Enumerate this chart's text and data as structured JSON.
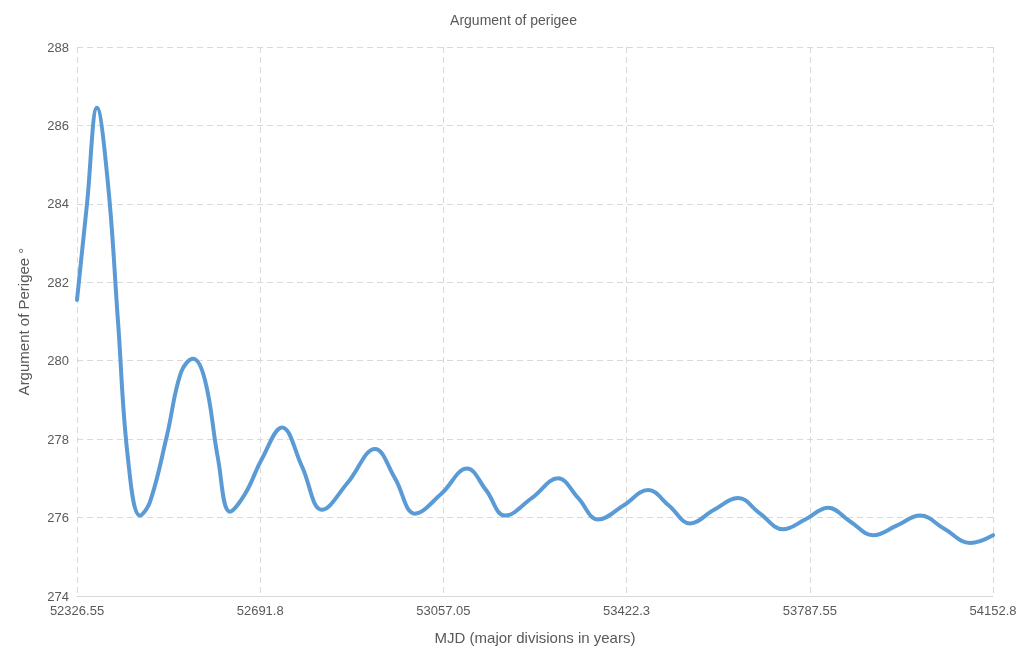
{
  "chart_data": {
    "type": "line",
    "title": "Argument of perigee",
    "xlabel": "MJD (major divisions in years)",
    "ylabel": "Argument of Perigee °",
    "x": [
      52326.55,
      52346.5,
      52366.4,
      52388.4,
      52408.3,
      52428.2,
      52452.2,
      52472.1,
      52506.0,
      52533.9,
      52557.8,
      52581.8,
      52607.7,
      52631.6,
      52661.5,
      52695.4,
      52735.3,
      52775.2,
      52815.1,
      52866.9,
      52920.7,
      52960.6,
      53000.5,
      53052.4,
      53104.2,
      53142.1,
      53180.0,
      53233.8,
      53285.7,
      53325.6,
      53365.4,
      53415.3,
      53465.2,
      53507.1,
      53548.9,
      53596.8,
      53644.6,
      53688.5,
      53734.4,
      53778.2,
      53824.1,
      53868.0,
      53913.8,
      53961.7,
      54007.4,
      54057.2,
      54107.1,
      54152.8
    ],
    "series": [
      {
        "color": "#5b9bd5",
        "values": [
          281.55,
          284.0,
          286.45,
          284.5,
          281.0,
          277.5,
          276.05,
          276.4,
          278.1,
          279.7,
          280.05,
          279.5,
          277.5,
          276.15,
          276.6,
          277.5,
          278.3,
          277.3,
          276.2,
          276.9,
          277.75,
          277.0,
          276.1,
          276.6,
          277.25,
          276.7,
          276.05,
          276.5,
          277.0,
          276.5,
          275.95,
          276.3,
          276.7,
          276.3,
          275.85,
          276.2,
          276.5,
          276.1,
          275.7,
          275.95,
          276.25,
          275.9,
          275.55,
          275.8,
          276.05,
          275.7,
          275.35,
          275.55
        ]
      }
    ],
    "xlim": [
      52326.55,
      54152.8
    ],
    "xticks": [
      52326.55,
      52691.8,
      53057.05,
      53422.3,
      53787.55,
      54152.8
    ],
    "ylim": [
      274,
      288
    ],
    "yticks": [
      274,
      276,
      278,
      280,
      282,
      284,
      286,
      288
    ],
    "grid": true,
    "marker": "none",
    "line_style": "solid"
  }
}
